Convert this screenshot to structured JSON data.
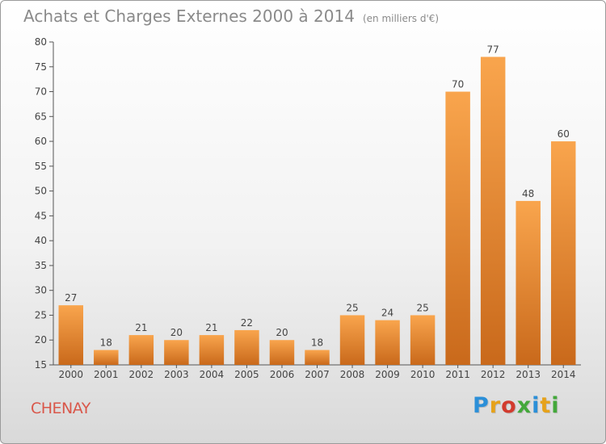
{
  "title": "Achats et Charges Externes 2000 à 2014",
  "subtitle": "(en milliers d'€)",
  "commune": "CHENAY",
  "logo": {
    "letters": [
      "P",
      "r",
      "o",
      "x",
      "i",
      "t",
      "i"
    ],
    "colors": [
      "#2b8fd8",
      "#e6a21a",
      "#d23b2e",
      "#43a83a",
      "#2b8fd8",
      "#e6a21a",
      "#43a83a"
    ]
  },
  "chart_data": {
    "type": "bar",
    "categories": [
      "2000",
      "2001",
      "2002",
      "2003",
      "2004",
      "2005",
      "2006",
      "2007",
      "2008",
      "2009",
      "2010",
      "2011",
      "2012",
      "2013",
      "2014"
    ],
    "values": [
      27,
      18,
      21,
      20,
      21,
      22,
      20,
      18,
      25,
      24,
      25,
      70,
      77,
      48,
      60
    ],
    "title": "Achats et Charges Externes 2000 à 2014",
    "subtitle": "(en milliers d'€)",
    "xlabel": "",
    "ylabel": "",
    "ylim": [
      15,
      80
    ],
    "yticks": [
      15,
      20,
      25,
      30,
      35,
      40,
      45,
      50,
      55,
      60,
      65,
      70,
      75,
      80
    ],
    "grid": false,
    "bar_color_top": "#f9a54d",
    "bar_color_bottom": "#c9691b"
  }
}
